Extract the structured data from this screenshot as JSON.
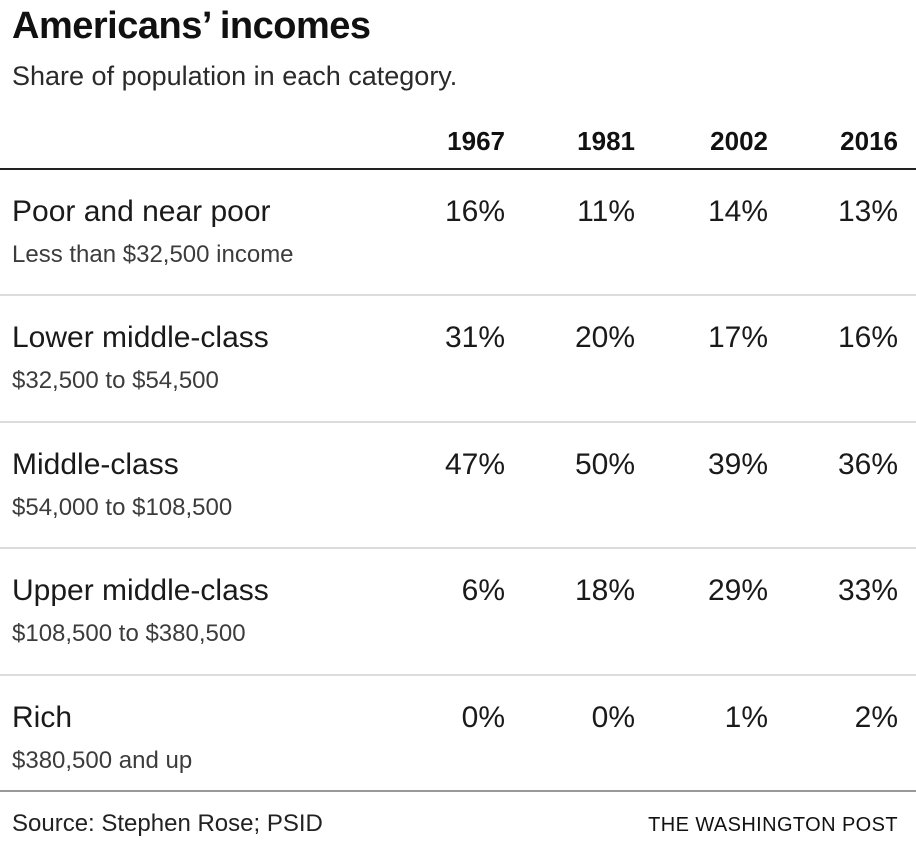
{
  "header": {
    "title": "Americans’ incomes",
    "subtitle": "Share of population in each category."
  },
  "table": {
    "year_columns": [
      "1967",
      "1981",
      "2002",
      "2016"
    ],
    "rows": [
      {
        "label": "Poor and near poor",
        "sublabel": "Less than $32,500 income",
        "values": [
          "16%",
          "11%",
          "14%",
          "13%"
        ]
      },
      {
        "label": "Lower middle-class",
        "sublabel": "$32,500 to $54,500",
        "values": [
          "31%",
          "20%",
          "17%",
          "16%"
        ]
      },
      {
        "label": "Middle-class",
        "sublabel": "$54,000 to $108,500",
        "values": [
          "47%",
          "50%",
          "39%",
          "36%"
        ]
      },
      {
        "label": "Upper middle-class",
        "sublabel": "$108,500 to $380,500",
        "values": [
          "6%",
          "18%",
          "29%",
          "33%"
        ]
      },
      {
        "label": "Rich",
        "sublabel": "$380,500 and up",
        "values": [
          "0%",
          "0%",
          "1%",
          "2%"
        ]
      }
    ]
  },
  "footer": {
    "source": "Source: Stephen Rose; PSID",
    "credit": "THE WASHINGTON POST"
  },
  "colors": {
    "header_rule": "#222222",
    "row_divider": "#dcdcdc",
    "footer_rule": "#999999",
    "text_primary": "#1a1a1a",
    "text_secondary": "#3c3c3c"
  },
  "chart_data": {
    "type": "table",
    "title": "Americans’ incomes",
    "subtitle": "Share of population in each category.",
    "columns": [
      "1967",
      "1981",
      "2002",
      "2016"
    ],
    "unit": "percent of population",
    "rows": [
      {
        "category": "Poor and near poor",
        "income_range": "Less than $32,500 income",
        "values_pct": [
          16,
          11,
          14,
          13
        ]
      },
      {
        "category": "Lower middle-class",
        "income_range": "$32,500 to $54,500",
        "values_pct": [
          31,
          20,
          17,
          16
        ]
      },
      {
        "category": "Middle-class",
        "income_range": "$54,000 to $108,500",
        "values_pct": [
          47,
          50,
          39,
          36
        ]
      },
      {
        "category": "Upper middle-class",
        "income_range": "$108,500 to $380,500",
        "values_pct": [
          6,
          18,
          29,
          33
        ]
      },
      {
        "category": "Rich",
        "income_range": "$380,500 and up",
        "values_pct": [
          0,
          0,
          1,
          2
        ]
      }
    ],
    "source": "Source: Stephen Rose; PSID",
    "credit": "THE WASHINGTON POST"
  }
}
